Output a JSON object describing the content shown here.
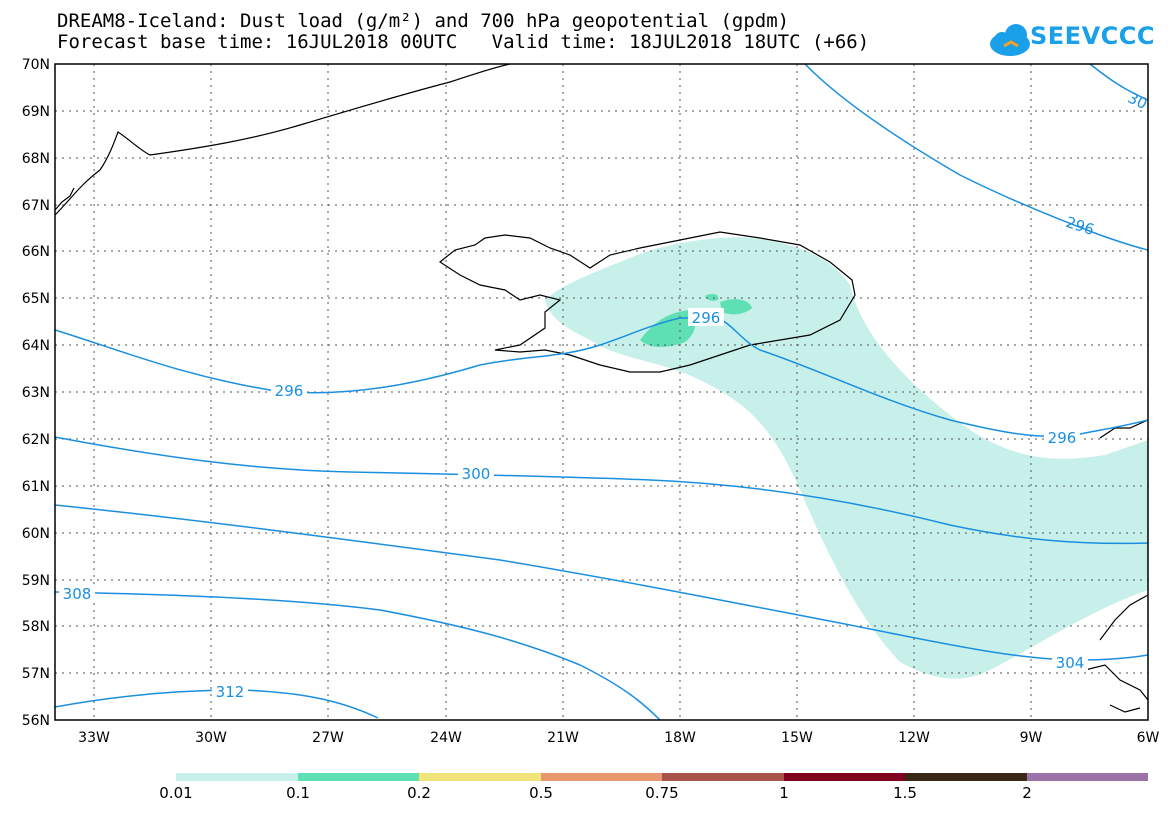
{
  "header": {
    "title_line1": "DREAM8-Iceland: Dust load (g/m²) and 700 hPa geopotential (gpdm)",
    "title_line2": "Forecast base time: 16JUL2018 00UTC   Valid time: 18JUL2018 18UTC (+66)"
  },
  "logo": {
    "text": "SEEVCCC"
  },
  "axes": {
    "lat_labels": [
      "70N",
      "69N",
      "68N",
      "67N",
      "66N",
      "65N",
      "64N",
      "63N",
      "62N",
      "61N",
      "60N",
      "59N",
      "58N",
      "57N",
      "56N"
    ],
    "lon_labels": [
      "33W",
      "30W",
      "27W",
      "24W",
      "21W",
      "18W",
      "15W",
      "12W",
      "9W",
      "6W"
    ]
  },
  "contours": {
    "labels": [
      "296",
      "296",
      "296",
      "300",
      "304",
      "308",
      "312",
      "30"
    ]
  },
  "colorbar": {
    "labels": [
      "0.01",
      "0.1",
      "0.2",
      "0.5",
      "0.75",
      "1",
      "1.5",
      "2"
    ],
    "colors": [
      "#c8f0ea",
      "#5fe0b4",
      "#f3e47a",
      "#e8986e",
      "#a8524a",
      "#800020",
      "#3a2816",
      "#9b72a8"
    ]
  },
  "colors": {
    "contour": "#1a8fe0",
    "dust_low": "#c8f0ea",
    "dust_mid": "#5fe0b4"
  }
}
